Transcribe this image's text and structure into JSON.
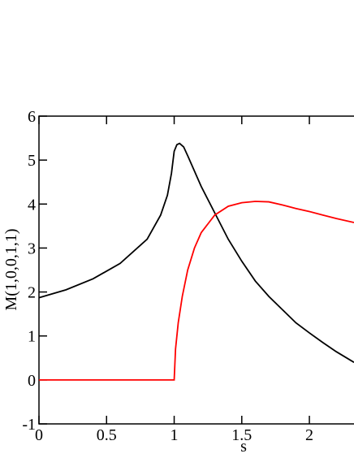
{
  "chart_data": {
    "type": "line",
    "x_label": "s",
    "y_label": "M(1,0,0,1,1)",
    "xlim": [
      0,
      2.33
    ],
    "ylim": [
      -1,
      6
    ],
    "xticks": [
      0,
      0.5,
      1,
      1.5,
      2
    ],
    "yticks": [
      -1,
      0,
      1,
      2,
      3,
      4,
      5,
      6
    ],
    "series": [
      {
        "color": "#000000",
        "x": [
          0,
          0.2,
          0.4,
          0.6,
          0.8,
          0.9,
          0.95,
          0.98,
          1.0,
          1.02,
          1.04,
          1.07,
          1.1,
          1.2,
          1.3,
          1.4,
          1.5,
          1.6,
          1.7,
          1.8,
          1.9,
          2.0,
          2.1,
          2.2,
          2.33
        ],
        "values": [
          1.87,
          2.05,
          2.3,
          2.65,
          3.2,
          3.75,
          4.2,
          4.7,
          5.2,
          5.35,
          5.38,
          5.3,
          5.1,
          4.4,
          3.8,
          3.2,
          2.7,
          2.25,
          1.9,
          1.6,
          1.3,
          1.07,
          0.85,
          0.64,
          0.4
        ]
      },
      {
        "color": "#ff0000",
        "x": [
          0,
          1.0,
          1.01,
          1.03,
          1.06,
          1.1,
          1.15,
          1.2,
          1.3,
          1.4,
          1.5,
          1.6,
          1.7,
          1.8,
          1.9,
          2.0,
          2.1,
          2.2,
          2.33
        ],
        "values": [
          0,
          0,
          0.7,
          1.3,
          1.9,
          2.5,
          3.0,
          3.35,
          3.75,
          3.95,
          4.03,
          4.06,
          4.05,
          3.98,
          3.9,
          3.83,
          3.75,
          3.67,
          3.58
        ]
      }
    ]
  }
}
